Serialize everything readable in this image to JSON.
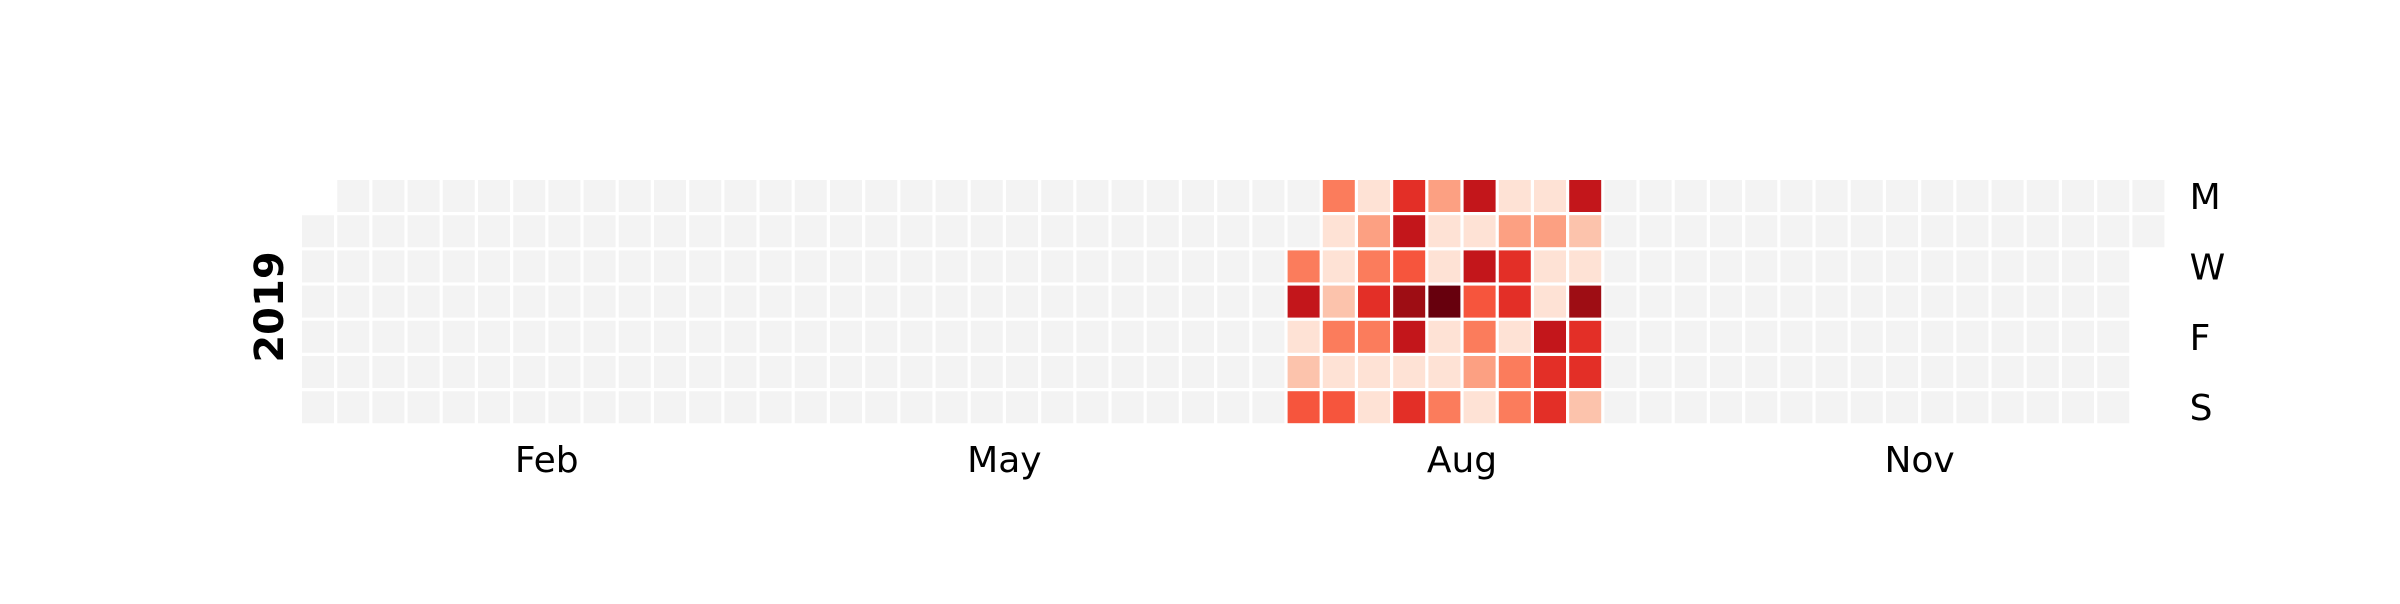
{
  "chart_data": {
    "type": "heatmap",
    "year": "2019",
    "xlabel": "",
    "ylabel": "",
    "month_tick_labels": [
      "Feb",
      "May",
      "Aug",
      "Nov"
    ],
    "weekday_tick_labels": [
      "M",
      "W",
      "F",
      "S"
    ],
    "weekday_tick_rows": [
      0,
      2,
      4,
      6
    ],
    "colormap": "Reds",
    "value_scale": {
      "min": 0,
      "max": 9
    },
    "empty_color": "#f3f3f3",
    "note_on_values": "Only the shaded weeks are listed below; every other day of 2019 is shown with empty_color (no data). Values are relative intensity levels read from the color scale.",
    "active_weeks": [
      {
        "week": 28,
        "values_mon_to_sun": [
          null,
          null,
          4,
          7,
          1,
          2,
          5
        ]
      },
      {
        "week": 29,
        "values_mon_to_sun": [
          4,
          1,
          1,
          2,
          4,
          1,
          5
        ]
      },
      {
        "week": 30,
        "values_mon_to_sun": [
          1,
          3,
          4,
          6,
          4,
          1,
          1
        ]
      },
      {
        "week": 31,
        "values_mon_to_sun": [
          6,
          7,
          5,
          8,
          7,
          1,
          6
        ]
      },
      {
        "week": 32,
        "values_mon_to_sun": [
          3,
          1,
          1,
          9,
          1,
          1,
          4
        ]
      },
      {
        "week": 33,
        "values_mon_to_sun": [
          7,
          1,
          7,
          5,
          4,
          3,
          1
        ]
      },
      {
        "week": 34,
        "values_mon_to_sun": [
          1,
          3,
          6,
          6,
          1,
          4,
          4
        ]
      },
      {
        "week": 35,
        "values_mon_to_sun": [
          1,
          3,
          1,
          1,
          7,
          6,
          6
        ]
      },
      {
        "week": 36,
        "values_mon_to_sun": [
          7,
          2,
          1,
          8,
          6,
          6,
          2
        ]
      }
    ]
  }
}
